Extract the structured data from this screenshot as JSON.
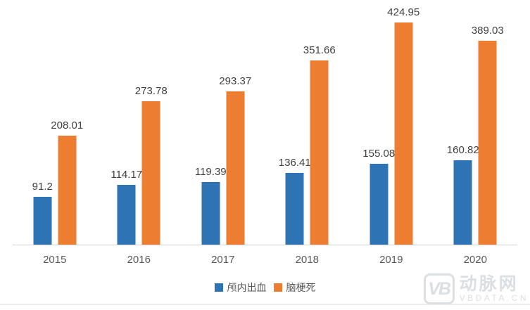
{
  "chart_data": {
    "type": "bar",
    "categories": [
      "2015",
      "2016",
      "2017",
      "2018",
      "2019",
      "2020"
    ],
    "series": [
      {
        "id": "intracranial-hemorrhage",
        "name": "颅内出血",
        "color": "#2E74B5",
        "values": [
          91.2,
          114.17,
          119.39,
          136.41,
          155.08,
          160.82
        ],
        "labels": [
          "91.2",
          "114.17",
          "119.39",
          "136.41",
          "155.08",
          "160.82"
        ]
      },
      {
        "id": "cerebral-infarction",
        "name": "脑梗死",
        "color": "#ED7D31",
        "values": [
          208.01,
          273.78,
          293.37,
          351.66,
          424.95,
          389.03
        ],
        "labels": [
          "208.01",
          "273.78",
          "293.37",
          "351.66",
          "424.95",
          "389.03"
        ]
      }
    ],
    "title": "",
    "xlabel": "",
    "ylabel": "",
    "ylim": [
      0,
      450
    ],
    "grid": false,
    "legend_position": "bottom",
    "data_labels": true,
    "axis_line_color": "#d6d6d6",
    "label_color": "#404040",
    "tick_color": "#595959"
  },
  "watermark": {
    "logo_text": "VB",
    "brand": "动脉网",
    "site": "VBDATA.CN"
  }
}
